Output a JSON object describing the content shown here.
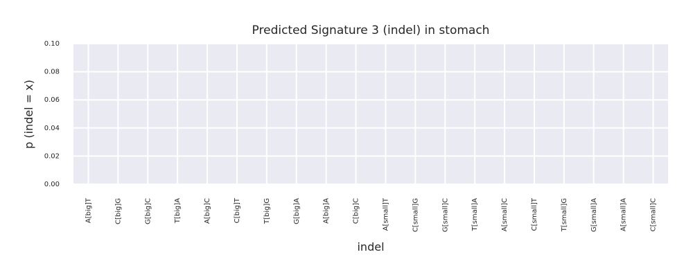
{
  "chart_data": {
    "type": "bar",
    "title": "Predicted Signature 3 (indel) in stomach",
    "xlabel": "indel",
    "ylabel": "p (indel = x)",
    "categories": [
      "A[big]T",
      "C[big]G",
      "G[big]C",
      "T[big]A",
      "A[big]C",
      "C[big]T",
      "T[big]G",
      "G[big]A",
      "A[big]A",
      "C[big]C",
      "A[small]T",
      "C[small]G",
      "G[small]C",
      "T[small]A",
      "A[small]C",
      "C[small]T",
      "T[small]G",
      "G[small]A",
      "A[small]A",
      "C[small]C"
    ],
    "values": [
      0,
      0,
      0,
      0,
      0,
      0,
      0,
      0,
      0,
      0,
      0,
      0,
      0,
      0,
      0,
      0,
      0,
      0,
      0,
      0
    ],
    "ylim": [
      0,
      0.1
    ],
    "yticks": [
      "0.00",
      "0.02",
      "0.04",
      "0.06",
      "0.08",
      "0.10"
    ],
    "grid": true,
    "colors": {
      "plot_bg": "#eaeaf2",
      "grid": "#ffffff",
      "bar": "#4c72b0",
      "text": "#262626"
    }
  }
}
